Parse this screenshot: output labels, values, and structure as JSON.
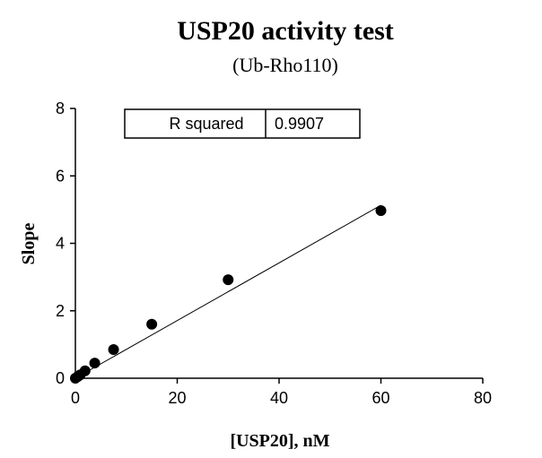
{
  "chart_data": {
    "type": "scatter",
    "title": "USP20 activity test",
    "subtitle": "(Ub-Rho110)",
    "xlabel": "[USP20], nM",
    "ylabel": "Slope",
    "xlim": [
      0,
      80
    ],
    "ylim": [
      0,
      8
    ],
    "xticks": [
      0,
      20,
      40,
      60,
      80
    ],
    "yticks": [
      0,
      2,
      4,
      6,
      8
    ],
    "grid": false,
    "series": [
      {
        "name": "Slope",
        "x": [
          0,
          0.47,
          0.94,
          1.9,
          3.8,
          7.5,
          15,
          30,
          60
        ],
        "y": [
          0.0,
          0.05,
          0.1,
          0.22,
          0.45,
          0.85,
          1.6,
          2.92,
          4.97
        ]
      }
    ],
    "fit_line": {
      "type": "linear",
      "x_range": [
        0,
        60
      ],
      "slope": 0.0855,
      "intercept": 0.0
    },
    "stats_table": {
      "label": "R squared",
      "value": "0.9907"
    }
  }
}
